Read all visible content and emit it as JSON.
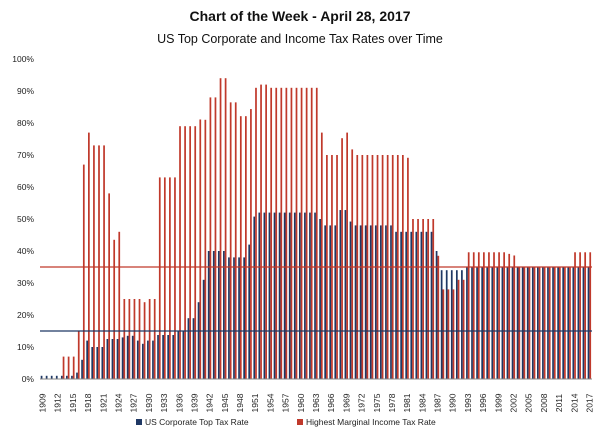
{
  "chart_data": {
    "type": "bar",
    "title": "Chart of the Week - April 28, 2017",
    "subtitle": "US Top Corporate and Income Tax Rates over Time",
    "ylim": [
      0,
      100
    ],
    "y_ticks": [
      "0%",
      "10%",
      "20%",
      "30%",
      "40%",
      "50%",
      "60%",
      "70%",
      "80%",
      "90%",
      "100%"
    ],
    "x_tick_labels": [
      "1909",
      "1912",
      "1915",
      "1918",
      "1921",
      "1924",
      "1927",
      "1930",
      "1933",
      "1936",
      "1939",
      "1942",
      "1945",
      "1948",
      "1951",
      "1954",
      "1957",
      "1960",
      "1963",
      "1966",
      "1969",
      "1972",
      "1975",
      "1978",
      "1981",
      "1984",
      "1987",
      "1990",
      "1993",
      "1996",
      "1999",
      "2002",
      "2005",
      "2008",
      "2011",
      "2014",
      "2017"
    ],
    "years": [
      1909,
      1910,
      1911,
      1912,
      1913,
      1914,
      1915,
      1916,
      1917,
      1918,
      1919,
      1920,
      1921,
      1922,
      1923,
      1924,
      1925,
      1926,
      1927,
      1928,
      1929,
      1930,
      1931,
      1932,
      1933,
      1934,
      1935,
      1936,
      1937,
      1938,
      1939,
      1940,
      1941,
      1942,
      1943,
      1944,
      1945,
      1946,
      1947,
      1948,
      1949,
      1950,
      1951,
      1952,
      1953,
      1954,
      1955,
      1956,
      1957,
      1958,
      1959,
      1960,
      1961,
      1962,
      1963,
      1964,
      1965,
      1966,
      1967,
      1968,
      1969,
      1970,
      1971,
      1972,
      1973,
      1974,
      1975,
      1976,
      1977,
      1978,
      1979,
      1980,
      1981,
      1982,
      1983,
      1984,
      1985,
      1986,
      1987,
      1988,
      1989,
      1990,
      1991,
      1992,
      1993,
      1994,
      1995,
      1996,
      1997,
      1998,
      1999,
      2000,
      2001,
      2002,
      2003,
      2004,
      2005,
      2006,
      2007,
      2008,
      2009,
      2010,
      2011,
      2012,
      2013,
      2014,
      2015,
      2016,
      2017
    ],
    "series": [
      {
        "name": "US Corporate Top Tax Rate",
        "color": "#1f3864",
        "values": [
          1,
          1,
          1,
          1,
          1,
          1,
          1,
          2,
          6,
          12,
          10,
          10,
          10,
          12.5,
          12.5,
          12.5,
          13,
          13.5,
          13.5,
          12,
          11,
          12,
          12,
          13.75,
          13.75,
          13.75,
          13.75,
          15,
          15,
          19,
          19,
          24,
          31,
          40,
          40,
          40,
          40,
          38,
          38,
          38,
          38,
          42,
          50.75,
          52,
          52,
          52,
          52,
          52,
          52,
          52,
          52,
          52,
          52,
          52,
          52,
          50,
          48,
          48,
          48,
          52.8,
          52.8,
          49.2,
          48,
          48,
          48,
          48,
          48,
          48,
          48,
          48,
          46,
          46,
          46,
          46,
          46,
          46,
          46,
          46,
          40,
          34,
          34,
          34,
          34,
          34,
          35,
          35,
          35,
          35,
          35,
          35,
          35,
          35,
          35,
          35,
          35,
          35,
          35,
          35,
          35,
          35,
          35,
          35,
          35,
          35,
          35,
          35,
          35,
          35,
          35
        ]
      },
      {
        "name": "Highest Marginal Income Tax Rate",
        "color": "#c0392b",
        "values": [
          0,
          0,
          0,
          0,
          7,
          7,
          7,
          15,
          67,
          77,
          73,
          73,
          73,
          58,
          43.5,
          46,
          25,
          25,
          25,
          25,
          24,
          25,
          25,
          63,
          63,
          63,
          63,
          79,
          79,
          79,
          79,
          81.1,
          81,
          88,
          88,
          94,
          94,
          86.45,
          86.45,
          82.13,
          82.13,
          84.36,
          91,
          92,
          92,
          91,
          91,
          91,
          91,
          91,
          91,
          91,
          91,
          91,
          91,
          77,
          70,
          70,
          70,
          75.25,
          77,
          71.75,
          70,
          70,
          70,
          70,
          70,
          70,
          70,
          70,
          70,
          70,
          69.13,
          50,
          50,
          50,
          50,
          50,
          38.5,
          28,
          28,
          28,
          31,
          31,
          39.6,
          39.6,
          39.6,
          39.6,
          39.6,
          39.6,
          39.6,
          39.6,
          39.1,
          38.6,
          35,
          35,
          35,
          35,
          35,
          35,
          35,
          35,
          35,
          35,
          35,
          39.6,
          39.6,
          39.6,
          39.6
        ]
      }
    ],
    "reference_lines": [
      {
        "name": "US Corporate Top Tax Rate reference",
        "value": 15,
        "color": "#1f3864"
      },
      {
        "name": "Highest Marginal Income Tax Rate reference",
        "value": 35,
        "color": "#c0392b"
      }
    ],
    "legend_position": "bottom",
    "grid": false
  }
}
